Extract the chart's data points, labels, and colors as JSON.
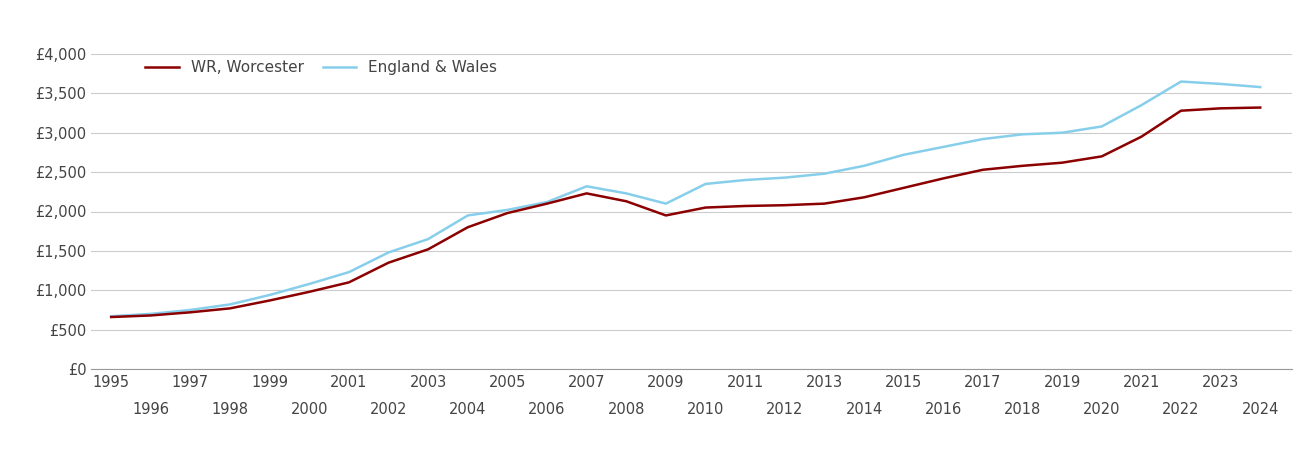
{
  "wr_worcester": {
    "years": [
      1995,
      1996,
      1997,
      1998,
      1999,
      2000,
      2001,
      2002,
      2003,
      2004,
      2005,
      2006,
      2007,
      2008,
      2009,
      2010,
      2011,
      2012,
      2013,
      2014,
      2015,
      2016,
      2017,
      2018,
      2019,
      2020,
      2021,
      2022,
      2023,
      2024
    ],
    "values": [
      660,
      680,
      720,
      770,
      870,
      980,
      1100,
      1350,
      1520,
      1800,
      1980,
      2100,
      2230,
      2130,
      1950,
      2050,
      2070,
      2080,
      2100,
      2180,
      2300,
      2420,
      2530,
      2580,
      2620,
      2700,
      2950,
      3280,
      3310,
      3320
    ]
  },
  "england_wales": {
    "years": [
      1995,
      1996,
      1997,
      1998,
      1999,
      2000,
      2001,
      2002,
      2003,
      2004,
      2005,
      2006,
      2007,
      2008,
      2009,
      2010,
      2011,
      2012,
      2013,
      2014,
      2015,
      2016,
      2017,
      2018,
      2019,
      2020,
      2021,
      2022,
      2023,
      2024
    ],
    "values": [
      670,
      700,
      750,
      820,
      940,
      1080,
      1230,
      1480,
      1650,
      1950,
      2020,
      2120,
      2320,
      2230,
      2100,
      2350,
      2400,
      2430,
      2480,
      2580,
      2720,
      2820,
      2920,
      2980,
      3000,
      3080,
      3350,
      3650,
      3620,
      3580
    ]
  },
  "wr_color": "#8B0000",
  "ew_color": "#87CEEB",
  "wr_label": "WR, Worcester",
  "ew_label": "England & Wales",
  "ylim": [
    0,
    4000
  ],
  "yticks": [
    0,
    500,
    1000,
    1500,
    2000,
    2500,
    3000,
    3500,
    4000
  ],
  "ytick_labels": [
    "£0",
    "£500",
    "£1,000",
    "£1,500",
    "£2,000",
    "£2,500",
    "£3,000",
    "£3,500",
    "£4,000"
  ],
  "background_color": "#ffffff",
  "grid_color": "#cccccc",
  "line_width": 1.8,
  "legend_fontsize": 11,
  "tick_fontsize": 10.5,
  "tick_color": "#444444",
  "xlim": [
    1994.5,
    2024.8
  ]
}
